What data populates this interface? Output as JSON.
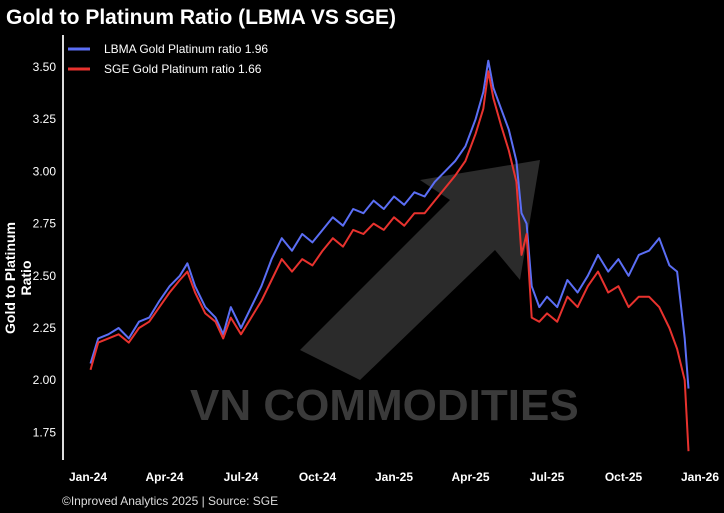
{
  "chart_data": {
    "type": "line",
    "title": "Gold to Platinum Ratio (LBMA VS SGE)",
    "xlabel": "",
    "ylabel": "Gold to Platinum Ratio",
    "ylim": [
      1.62,
      3.62
    ],
    "yticks": [
      1.75,
      2.0,
      2.25,
      2.5,
      2.75,
      3.0,
      3.25,
      3.5
    ],
    "ytick_labels": [
      "1.75",
      "2.00",
      "2.25",
      "2.50",
      "2.75",
      "3.00",
      "3.25",
      "3.50"
    ],
    "xtick_labels": [
      "Jan-24",
      "Apr-24",
      "Jul-24",
      "Oct-24",
      "Jan-25",
      "Apr-25",
      "Jul-25",
      "Oct-25",
      "Jan-26"
    ],
    "x_unit": "months since Jan-24",
    "xlim": [
      0,
      24
    ],
    "x": [
      0.1,
      0.4,
      0.8,
      1.2,
      1.6,
      2.0,
      2.4,
      2.8,
      3.2,
      3.6,
      3.9,
      4.2,
      4.6,
      5.0,
      5.3,
      5.6,
      6.0,
      6.4,
      6.8,
      7.2,
      7.6,
      8.0,
      8.4,
      8.8,
      9.2,
      9.6,
      10.0,
      10.4,
      10.8,
      11.2,
      11.6,
      12.0,
      12.4,
      12.8,
      13.2,
      13.6,
      14.0,
      14.4,
      14.8,
      15.2,
      15.5,
      15.7,
      15.9,
      16.2,
      16.5,
      16.8,
      17.0,
      17.2,
      17.4,
      17.7,
      18.0,
      18.4,
      18.8,
      19.2,
      19.6,
      20.0,
      20.4,
      20.8,
      21.2,
      21.6,
      22.0,
      22.4,
      22.8,
      23.1,
      23.4,
      23.55
    ],
    "series": [
      {
        "name": "LBMA Gold Platinum ratio 1.96",
        "color": "#5b6ef5",
        "values": [
          2.08,
          2.2,
          2.22,
          2.25,
          2.2,
          2.28,
          2.3,
          2.38,
          2.45,
          2.5,
          2.56,
          2.45,
          2.35,
          2.3,
          2.22,
          2.35,
          2.25,
          2.35,
          2.45,
          2.58,
          2.68,
          2.62,
          2.7,
          2.66,
          2.72,
          2.78,
          2.74,
          2.82,
          2.8,
          2.86,
          2.82,
          2.88,
          2.84,
          2.9,
          2.88,
          2.95,
          3.0,
          3.05,
          3.12,
          3.25,
          3.38,
          3.53,
          3.4,
          3.3,
          3.2,
          3.05,
          2.8,
          2.75,
          2.45,
          2.35,
          2.4,
          2.35,
          2.48,
          2.42,
          2.5,
          2.6,
          2.52,
          2.58,
          2.5,
          2.6,
          2.62,
          2.68,
          2.55,
          2.52,
          2.2,
          1.96
        ]
      },
      {
        "name": "SGE Gold Platinum ratio 1.66",
        "color": "#e8322e",
        "values": [
          2.05,
          2.18,
          2.2,
          2.22,
          2.18,
          2.25,
          2.28,
          2.35,
          2.42,
          2.48,
          2.52,
          2.42,
          2.32,
          2.28,
          2.2,
          2.3,
          2.22,
          2.3,
          2.38,
          2.48,
          2.58,
          2.52,
          2.58,
          2.55,
          2.62,
          2.68,
          2.64,
          2.72,
          2.7,
          2.75,
          2.72,
          2.78,
          2.74,
          2.8,
          2.8,
          2.86,
          2.92,
          2.98,
          3.05,
          3.18,
          3.3,
          3.48,
          3.35,
          3.22,
          3.1,
          2.95,
          2.6,
          2.7,
          2.3,
          2.28,
          2.32,
          2.28,
          2.4,
          2.35,
          2.45,
          2.52,
          2.42,
          2.45,
          2.35,
          2.4,
          2.4,
          2.35,
          2.25,
          2.15,
          2.0,
          1.66
        ]
      }
    ],
    "legend_position": "top-left",
    "grid": false
  },
  "watermark": "VN COMMODITIES",
  "footer": "©Inproved Analytics 2025 | Source: SGE"
}
